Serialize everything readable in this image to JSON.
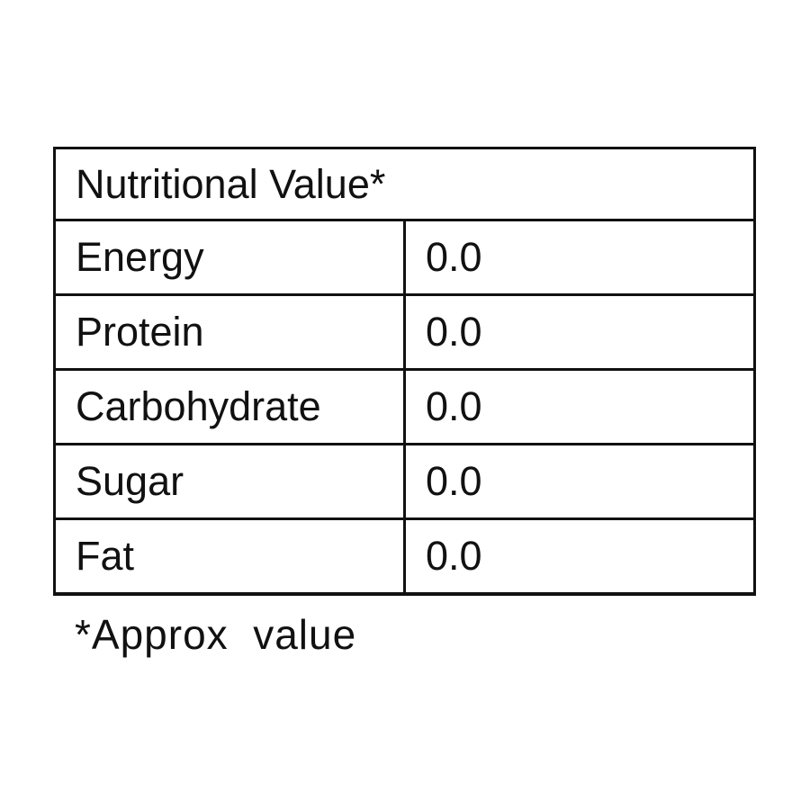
{
  "table": {
    "title": "Nutritional Value*",
    "rows": [
      [
        "Energy",
        "0.0"
      ],
      [
        "Protein",
        "0.0"
      ],
      [
        "Carbohydrate",
        "0.0"
      ],
      [
        "Sugar",
        "0.0"
      ],
      [
        "Fat",
        "0.0"
      ]
    ]
  },
  "footnote": "*Approx  value"
}
